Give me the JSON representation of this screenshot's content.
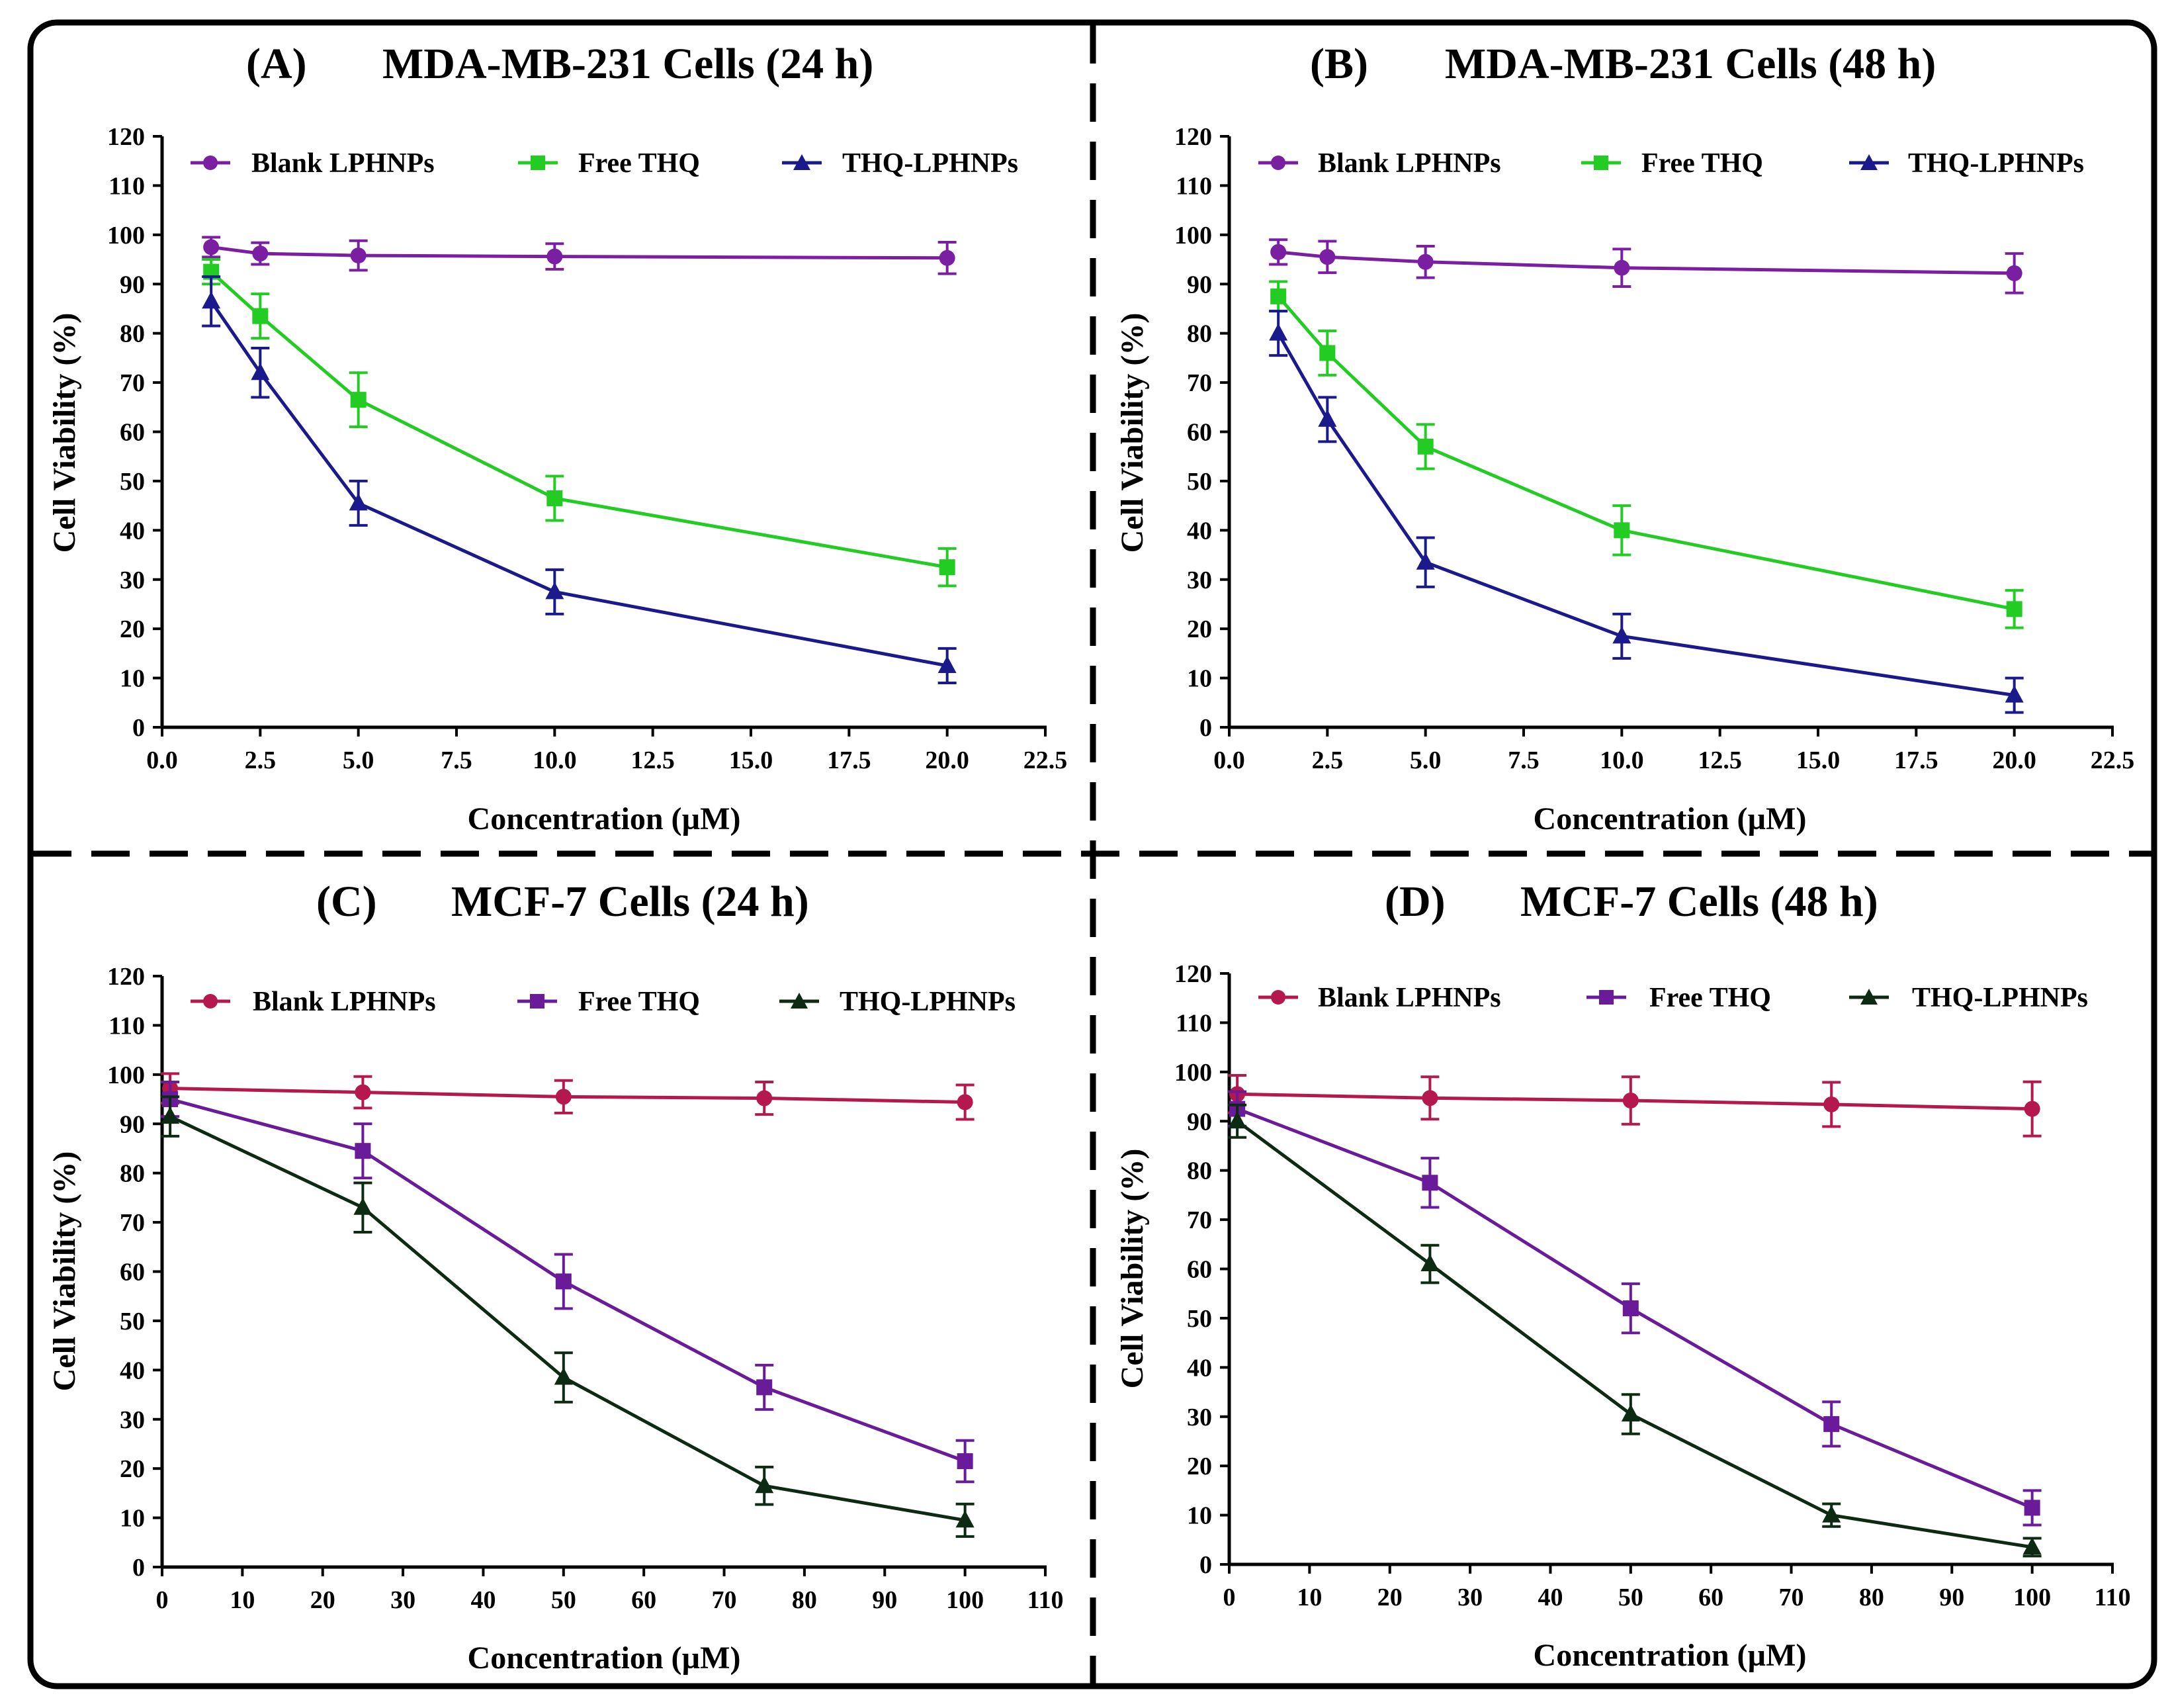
{
  "chart_data": [
    {
      "type": "line",
      "panel": "(A)",
      "title": "MDA-MB-231 Cells (24 h)",
      "xlabel": "Concentration (µM)",
      "ylabel": "Cell Viability (%)",
      "xlim": [
        0,
        22.5
      ],
      "ylim": [
        0,
        120
      ],
      "xticks": [
        0,
        2.5,
        5,
        7.5,
        10,
        12.5,
        15,
        17.5,
        20,
        22.5
      ],
      "xtick_labels": [
        "0.0",
        "2.5",
        "5.0",
        "7.5",
        "10.0",
        "12.5",
        "15.0",
        "17.5",
        "20.0",
        "22.5"
      ],
      "yticks": [
        0,
        10,
        20,
        30,
        40,
        50,
        60,
        70,
        80,
        90,
        100,
        110,
        120
      ],
      "ytick_labels": [
        "0",
        "10",
        "20",
        "30",
        "40",
        "50",
        "60",
        "70",
        "80",
        "90",
        "100",
        "110",
        "120"
      ],
      "x": [
        1.25,
        2.5,
        5,
        10,
        20
      ],
      "series": [
        {
          "name": "Blank LPHNPs",
          "color": "#7b1fa2",
          "marker": "circle",
          "values": [
            97.5,
            96.2,
            95.8,
            95.6,
            95.3
          ],
          "errors": [
            2.0,
            2.2,
            3.0,
            2.6,
            3.2
          ]
        },
        {
          "name": "Free THQ",
          "color": "#22cc22",
          "marker": "square",
          "values": [
            92.5,
            83.5,
            66.5,
            46.5,
            32.5
          ],
          "errors": [
            2.5,
            4.5,
            5.5,
            4.5,
            3.8
          ]
        },
        {
          "name": "THQ-LPHNPs",
          "color": "#1a1a8c",
          "marker": "triangle",
          "values": [
            86.5,
            72,
            45.5,
            27.5,
            12.5
          ],
          "errors": [
            5.0,
            5.0,
            4.5,
            4.5,
            3.5
          ]
        }
      ]
    },
    {
      "type": "line",
      "panel": "(B)",
      "title": "MDA-MB-231 Cells (48 h)",
      "xlabel": "Concentration (µM)",
      "ylabel": "Cell Viability (%)",
      "xlim": [
        0,
        22.5
      ],
      "ylim": [
        0,
        120
      ],
      "xticks": [
        0,
        2.5,
        5,
        7.5,
        10,
        12.5,
        15,
        17.5,
        20,
        22.5
      ],
      "xtick_labels": [
        "0.0",
        "2.5",
        "5.0",
        "7.5",
        "10.0",
        "12.5",
        "15.0",
        "17.5",
        "20.0",
        "22.5"
      ],
      "yticks": [
        0,
        10,
        20,
        30,
        40,
        50,
        60,
        70,
        80,
        90,
        100,
        110,
        120
      ],
      "ytick_labels": [
        "0",
        "10",
        "20",
        "30",
        "40",
        "50",
        "60",
        "70",
        "80",
        "90",
        "100",
        "110",
        "120"
      ],
      "x": [
        1.25,
        2.5,
        5,
        10,
        20
      ],
      "series": [
        {
          "name": "Blank LPHNPs",
          "color": "#7b1fa2",
          "marker": "circle",
          "values": [
            96.5,
            95.5,
            94.5,
            93.3,
            92.2
          ],
          "errors": [
            2.5,
            3.2,
            3.2,
            3.8,
            4.0
          ]
        },
        {
          "name": "Free THQ",
          "color": "#22cc22",
          "marker": "square",
          "values": [
            87.5,
            76,
            57,
            40,
            24
          ],
          "errors": [
            3.0,
            4.5,
            4.5,
            5.0,
            3.8
          ]
        },
        {
          "name": "THQ-LPHNPs",
          "color": "#1a1a8c",
          "marker": "triangle",
          "values": [
            80,
            62.5,
            33.5,
            18.5,
            6.5
          ],
          "errors": [
            4.5,
            4.5,
            5.0,
            4.5,
            3.5
          ]
        }
      ]
    },
    {
      "type": "line",
      "panel": "(C)",
      "title": "MCF-7 Cells (24 h)",
      "xlabel": "Concentration (µM)",
      "ylabel": "Cell Viability (%)",
      "xlim": [
        0,
        110
      ],
      "ylim": [
        0,
        120
      ],
      "xticks": [
        0,
        10,
        20,
        30,
        40,
        50,
        60,
        70,
        80,
        90,
        100,
        110
      ],
      "xtick_labels": [
        "0",
        "10",
        "20",
        "30",
        "40",
        "50",
        "60",
        "70",
        "80",
        "90",
        "100",
        "110"
      ],
      "yticks": [
        0,
        10,
        20,
        30,
        40,
        50,
        60,
        70,
        80,
        90,
        100,
        110,
        120
      ],
      "ytick_labels": [
        "0",
        "10",
        "20",
        "30",
        "40",
        "50",
        "60",
        "70",
        "80",
        "90",
        "100",
        "110",
        "120"
      ],
      "x": [
        1,
        25,
        50,
        75,
        100
      ],
      "series": [
        {
          "name": "Blank LPHNPs",
          "color": "#b5174f",
          "marker": "circle",
          "values": [
            97.2,
            96.4,
            95.5,
            95.2,
            94.4
          ],
          "errors": [
            3.0,
            3.2,
            3.3,
            3.3,
            3.5
          ]
        },
        {
          "name": "Free THQ",
          "color": "#6a1b9a",
          "marker": "square",
          "values": [
            95,
            84.5,
            58,
            36.5,
            21.5
          ],
          "errors": [
            3.5,
            5.5,
            5.5,
            4.5,
            4.2
          ]
        },
        {
          "name": "THQ-LPHNPs",
          "color": "#0d2b12",
          "marker": "triangle",
          "values": [
            91.5,
            73,
            38.5,
            16.5,
            9.5
          ],
          "errors": [
            4.0,
            5.0,
            5.0,
            3.8,
            3.3
          ]
        }
      ]
    },
    {
      "type": "line",
      "panel": "(D)",
      "title": "MCF-7 Cells (48 h)",
      "xlabel": "Concentration (µM)",
      "ylabel": "Cell Viability (%)",
      "xlim": [
        0,
        110
      ],
      "ylim": [
        0,
        120
      ],
      "xticks": [
        0,
        10,
        20,
        30,
        40,
        50,
        60,
        70,
        80,
        90,
        100,
        110
      ],
      "xtick_labels": [
        "0",
        "10",
        "20",
        "30",
        "40",
        "50",
        "60",
        "70",
        "80",
        "90",
        "100",
        "110"
      ],
      "yticks": [
        0,
        10,
        20,
        30,
        40,
        50,
        60,
        70,
        80,
        90,
        100,
        110,
        120
      ],
      "ytick_labels": [
        "0",
        "10",
        "20",
        "30",
        "40",
        "50",
        "60",
        "70",
        "80",
        "90",
        "100",
        "110",
        "120"
      ],
      "x": [
        1,
        25,
        50,
        75,
        100
      ],
      "series": [
        {
          "name": "Blank LPHNPs",
          "color": "#b5174f",
          "marker": "circle",
          "values": [
            95.5,
            94.7,
            94.2,
            93.4,
            92.5
          ],
          "errors": [
            3.8,
            4.3,
            4.8,
            4.5,
            5.5
          ]
        },
        {
          "name": "Free THQ",
          "color": "#6a1b9a",
          "marker": "square",
          "values": [
            92.5,
            77.5,
            52,
            28.5,
            11.5
          ],
          "errors": [
            3.5,
            5.0,
            5.0,
            4.5,
            3.5
          ]
        },
        {
          "name": "THQ-LPHNPs",
          "color": "#0d2b12",
          "marker": "triangle",
          "values": [
            90,
            61,
            30.5,
            10,
            3.5
          ],
          "errors": [
            3.3,
            3.8,
            4.0,
            2.3,
            1.8
          ]
        }
      ]
    }
  ]
}
